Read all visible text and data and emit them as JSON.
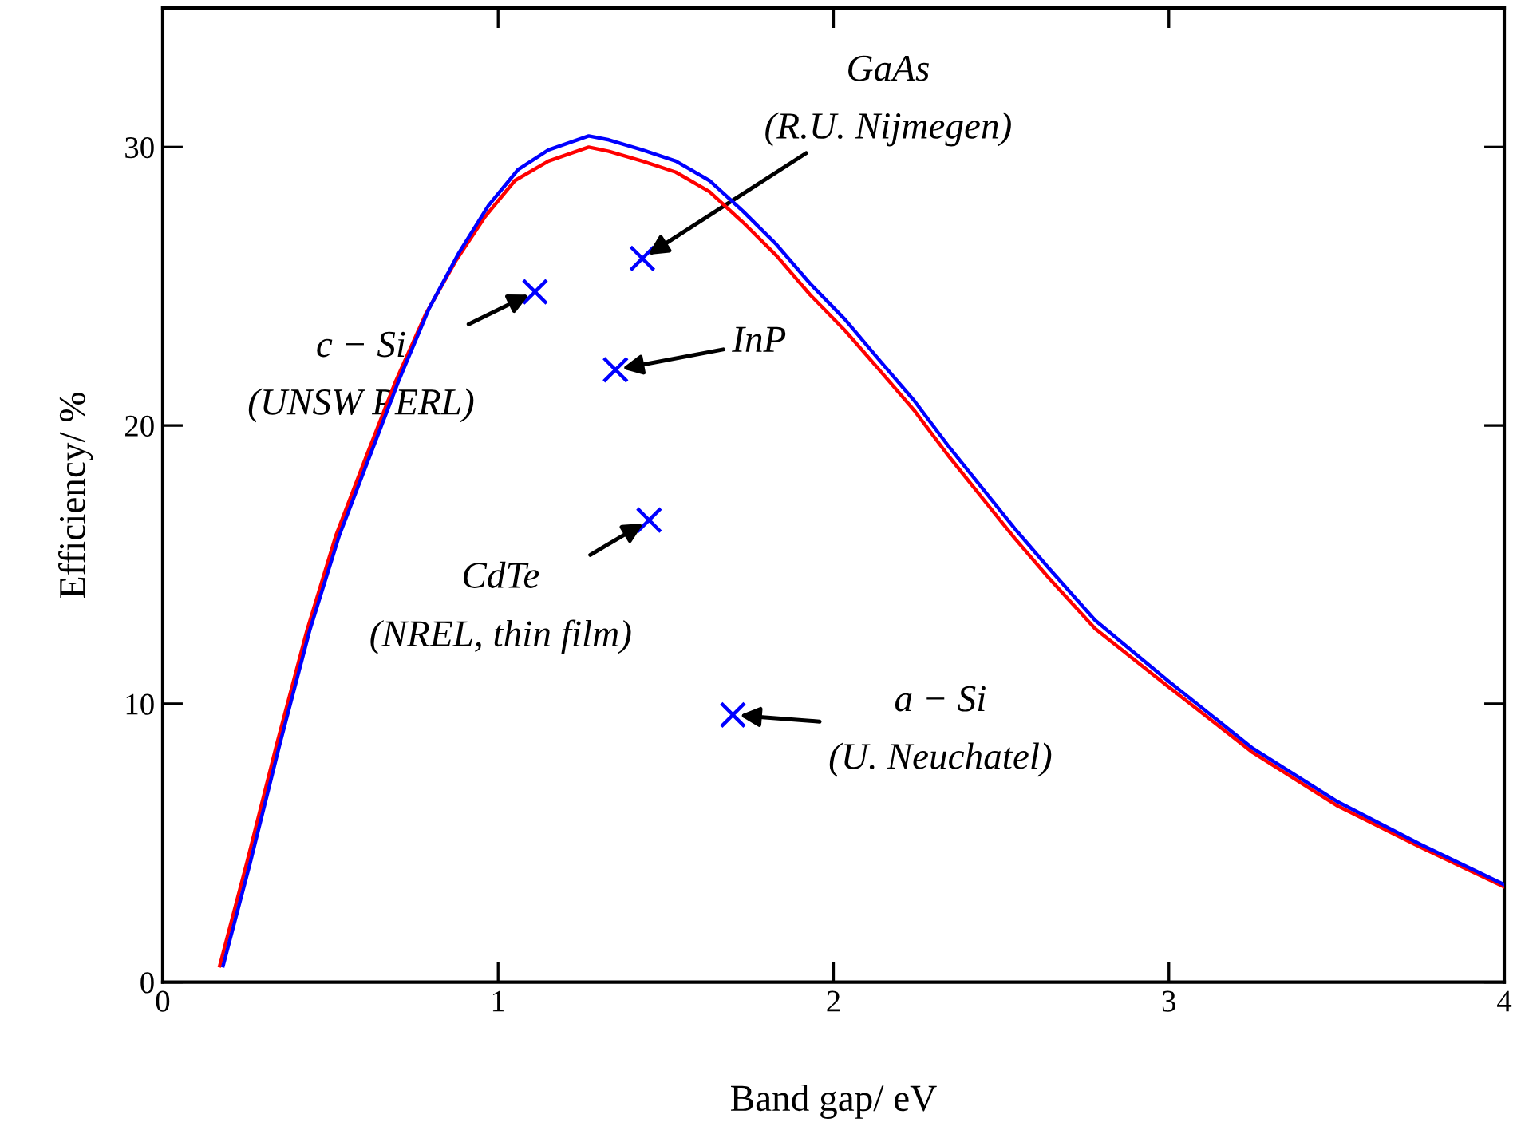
{
  "chart_data": {
    "type": "line",
    "xlabel": "Band gap/ eV",
    "ylabel": "Efficiency/ %",
    "xlim": [
      0,
      4
    ],
    "ylim": [
      0,
      35
    ],
    "xticks": [
      0,
      1,
      2,
      3,
      4
    ],
    "yticks": [
      0,
      10,
      20,
      30
    ],
    "grid": false,
    "legend": false,
    "series": [
      {
        "color": "#ff0000",
        "x": [
          0.17,
          0.25,
          0.34,
          0.43,
          0.517,
          0.606,
          0.695,
          0.784,
          0.873,
          0.961,
          1.05,
          1.15,
          1.27,
          1.33,
          1.43,
          1.53,
          1.63,
          1.73,
          1.83,
          1.93,
          2.035,
          2.14,
          2.24,
          2.34,
          2.44,
          2.54,
          2.64,
          2.78,
          3.0,
          3.25,
          3.5,
          3.75,
          4.0
        ],
        "values": [
          0.59,
          4.25,
          8.55,
          12.63,
          16.07,
          18.86,
          21.6,
          24.0,
          25.9,
          27.5,
          28.8,
          29.5,
          30.0,
          29.85,
          29.5,
          29.1,
          28.4,
          27.3,
          26.1,
          24.7,
          23.4,
          21.95,
          20.55,
          18.95,
          17.45,
          15.95,
          14.55,
          12.7,
          10.6,
          8.25,
          6.35,
          4.85,
          3.42
        ]
      },
      {
        "color": "#0000ff",
        "x": [
          0.18,
          0.26,
          0.349,
          0.438,
          0.527,
          0.616,
          0.705,
          0.794,
          0.883,
          0.971,
          1.06,
          1.15,
          1.27,
          1.33,
          1.43,
          1.53,
          1.63,
          1.73,
          1.83,
          1.93,
          2.035,
          2.14,
          2.24,
          2.34,
          2.44,
          2.54,
          2.64,
          2.78,
          3.0,
          3.25,
          3.5,
          3.75,
          4.0
        ],
        "values": [
          0.59,
          4.25,
          8.55,
          12.63,
          16.07,
          18.86,
          21.65,
          24.2,
          26.2,
          27.9,
          29.2,
          29.9,
          30.4,
          30.26,
          29.9,
          29.5,
          28.8,
          27.7,
          26.5,
          25.1,
          23.8,
          22.3,
          20.9,
          19.3,
          17.8,
          16.3,
          14.9,
          13.0,
          10.8,
          8.4,
          6.5,
          4.95,
          3.5
        ]
      },
      {
        "type": "scatter",
        "color": "#0000ff",
        "marker": "cross",
        "x": [
          1.11,
          1.43,
          1.35,
          1.45,
          1.7
        ],
        "values": [
          24.8,
          26.0,
          22.0,
          16.6,
          9.6
        ]
      }
    ],
    "annotations": [
      {
        "text": "c − Si\n(UNSW PERL)",
        "x": 1.11,
        "y": 24.8
      },
      {
        "text": "GaAs\n(R.U. Nijmegen)",
        "x": 1.43,
        "y": 26.0
      },
      {
        "text": "InP",
        "x": 1.35,
        "y": 22.0
      },
      {
        "text": "CdTe\n(NREL, thin film)",
        "x": 1.45,
        "y": 16.6
      },
      {
        "text": "a − Si\n(U. Neuchatel)",
        "x": 1.7,
        "y": 9.6
      }
    ]
  }
}
